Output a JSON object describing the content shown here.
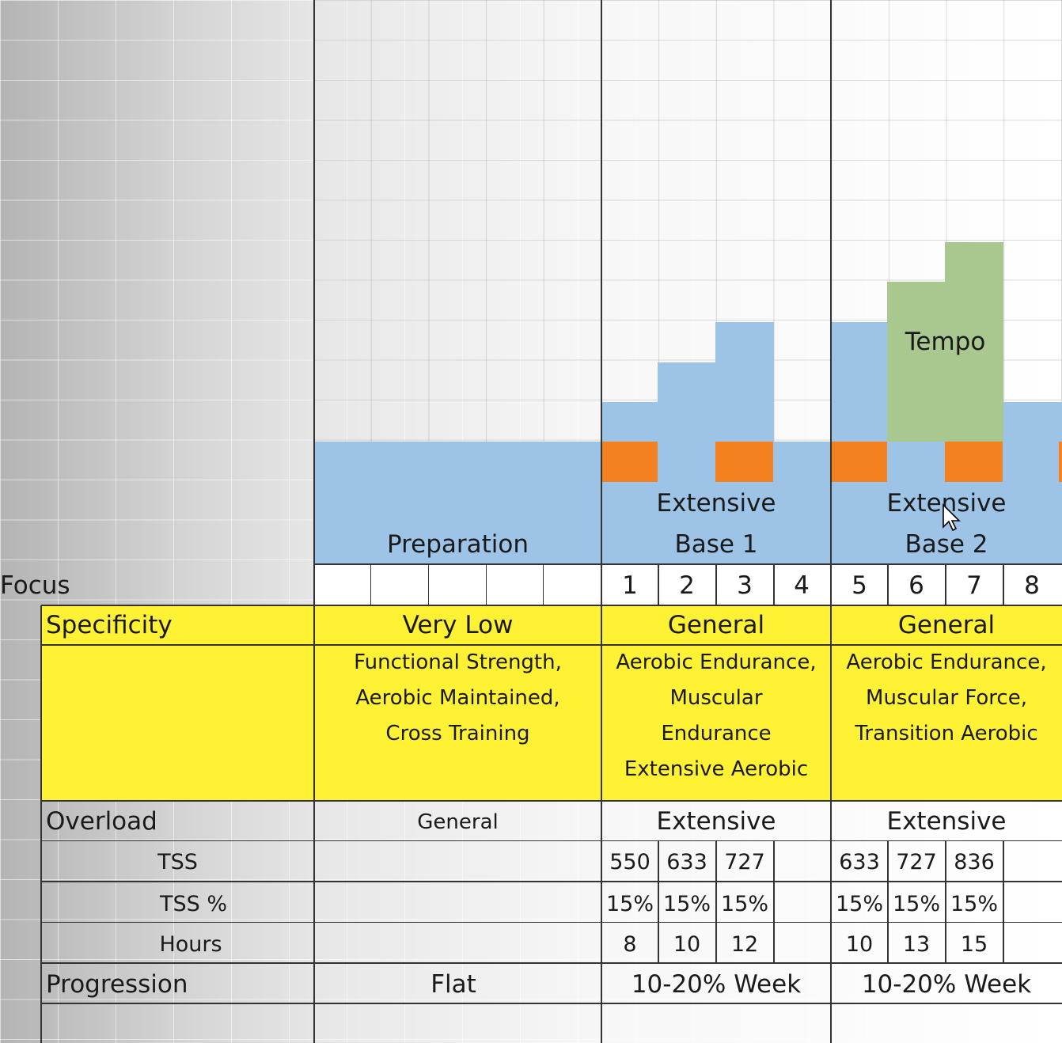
{
  "phases": {
    "prep": "Preparation",
    "base1_line1": "Extensive",
    "base1_line2": "Base 1",
    "base2_line1": "Extensive",
    "base2_line2": "Base 2",
    "tempo": "Tempo"
  },
  "focus_label": "Focus",
  "weeks": [
    "1",
    "2",
    "3",
    "4",
    "5",
    "6",
    "7",
    "8"
  ],
  "specificity": {
    "label": "Specificity",
    "prep": "Very Low",
    "base1": "General",
    "base2": "General",
    "prep_detail": [
      "Functional Strength,",
      "Aerobic Maintained,",
      "Cross Training"
    ],
    "base1_detail": [
      "Aerobic Endurance,",
      "Muscular",
      "Endurance",
      "Extensive Aerobic"
    ],
    "base2_detail": [
      "Aerobic Endurance,",
      "Muscular Force,",
      "Transition Aerobic"
    ]
  },
  "overload": {
    "label": "Overload",
    "prep": "General",
    "base1": "Extensive",
    "base2": "Extensive"
  },
  "tss": {
    "label": "TSS",
    "values": [
      "550",
      "633",
      "727",
      "",
      "633",
      "727",
      "836",
      ""
    ]
  },
  "tss_pct": {
    "label": "TSS %",
    "values": [
      "15%",
      "15%",
      "15%",
      "",
      "15%",
      "15%",
      "15%",
      ""
    ]
  },
  "hours": {
    "label": "Hours",
    "values": [
      "8",
      "10",
      "12",
      "",
      "10",
      "13",
      "15",
      ""
    ]
  },
  "progression": {
    "label": "Progression",
    "prep": "Flat",
    "base1": "10-20% Week",
    "base2": "10-20% Week"
  },
  "colors": {
    "blue": "#9dc3e6",
    "orange": "#f4811f",
    "green": "#a9c88f",
    "yellow": "#fff133"
  }
}
